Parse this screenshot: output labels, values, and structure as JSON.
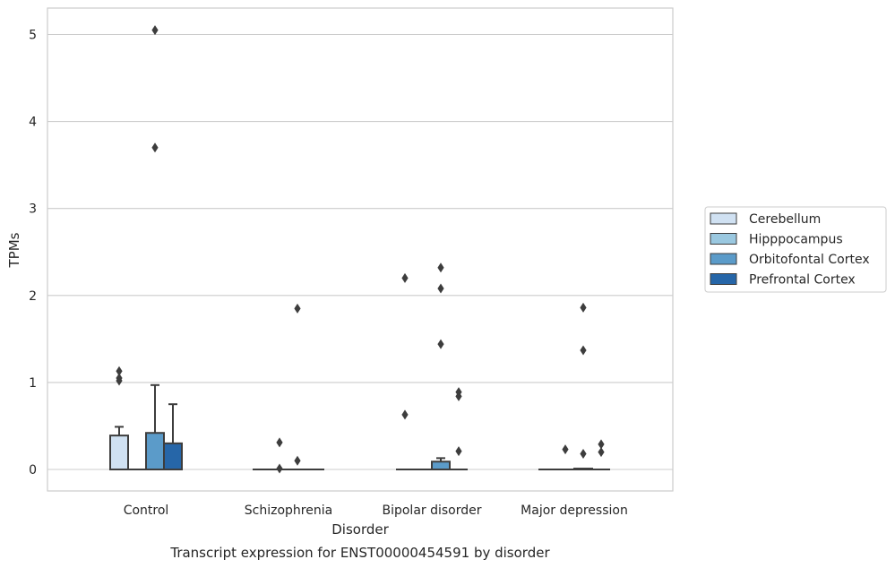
{
  "chart_data": {
    "type": "box",
    "title": "",
    "caption": "Transcript expression for ENST00000454591 by disorder",
    "xlabel": "Disorder",
    "ylabel": "TPMs",
    "ylim": [
      -0.25,
      5.3
    ],
    "yticks": [
      0,
      1,
      2,
      3,
      4,
      5
    ],
    "grid": true,
    "legend_position": "right",
    "categories": [
      "Control",
      "Schizophrenia",
      "Bipolar disorder",
      "Major depression"
    ],
    "series": [
      {
        "name": "Cerebellum",
        "color": "#d0e1f2",
        "boxes": [
          {
            "q1": 0,
            "median": 0,
            "q3": 0.39,
            "whisker_low": 0,
            "whisker_high": 0.49,
            "outliers": [
              1.02,
              1.05,
              1.13
            ]
          },
          {
            "q1": 0,
            "median": 0,
            "q3": 0,
            "whisker_low": 0,
            "whisker_high": 0,
            "outliers": []
          },
          {
            "q1": 0,
            "median": 0,
            "q3": 0,
            "whisker_low": 0,
            "whisker_high": 0,
            "outliers": [
              0.63,
              2.2
            ]
          },
          {
            "q1": 0,
            "median": 0,
            "q3": 0,
            "whisker_low": 0,
            "whisker_high": 0,
            "outliers": []
          }
        ]
      },
      {
        "name": "Hipppocampus",
        "color": "#9ac8e0",
        "boxes": [
          {
            "q1": 0,
            "median": 0,
            "q3": 0,
            "whisker_low": 0,
            "whisker_high": 0,
            "outliers": []
          },
          {
            "q1": 0,
            "median": 0,
            "q3": 0,
            "whisker_low": 0,
            "whisker_high": 0,
            "outliers": [
              0.01,
              0.31
            ]
          },
          {
            "q1": 0,
            "median": 0,
            "q3": 0,
            "whisker_low": 0,
            "whisker_high": 0,
            "outliers": []
          },
          {
            "q1": 0,
            "median": 0,
            "q3": 0,
            "whisker_low": 0,
            "whisker_high": 0,
            "outliers": [
              0.23
            ]
          }
        ]
      },
      {
        "name": "Orbitofontal Cortex",
        "color": "#5b9bc9",
        "boxes": [
          {
            "q1": 0,
            "median": 0,
            "q3": 0.42,
            "whisker_low": 0,
            "whisker_high": 0.97,
            "outliers": [
              3.7,
              5.05
            ]
          },
          {
            "q1": 0,
            "median": 0,
            "q3": 0,
            "whisker_low": 0,
            "whisker_high": 0,
            "outliers": [
              0.1,
              1.85
            ]
          },
          {
            "q1": 0,
            "median": 0,
            "q3": 0.09,
            "whisker_low": 0,
            "whisker_high": 0.13,
            "outliers": [
              1.44,
              2.08,
              2.32
            ]
          },
          {
            "q1": 0,
            "median": 0,
            "q3": 0.01,
            "whisker_low": 0,
            "whisker_high": 0.01,
            "outliers": [
              0.18,
              1.37,
              1.86
            ]
          }
        ]
      },
      {
        "name": "Prefrontal Cortex",
        "color": "#2666a8",
        "boxes": [
          {
            "q1": 0,
            "median": 0,
            "q3": 0.3,
            "whisker_low": 0,
            "whisker_high": 0.75,
            "outliers": []
          },
          {
            "q1": 0,
            "median": 0,
            "q3": 0,
            "whisker_low": 0,
            "whisker_high": 0,
            "outliers": []
          },
          {
            "q1": 0,
            "median": 0,
            "q3": 0,
            "whisker_low": 0,
            "whisker_high": 0,
            "outliers": [
              0.21,
              0.84,
              0.89
            ]
          },
          {
            "q1": 0,
            "median": 0,
            "q3": 0,
            "whisker_low": 0,
            "whisker_high": 0,
            "outliers": [
              0.2,
              0.29
            ]
          }
        ]
      }
    ]
  }
}
